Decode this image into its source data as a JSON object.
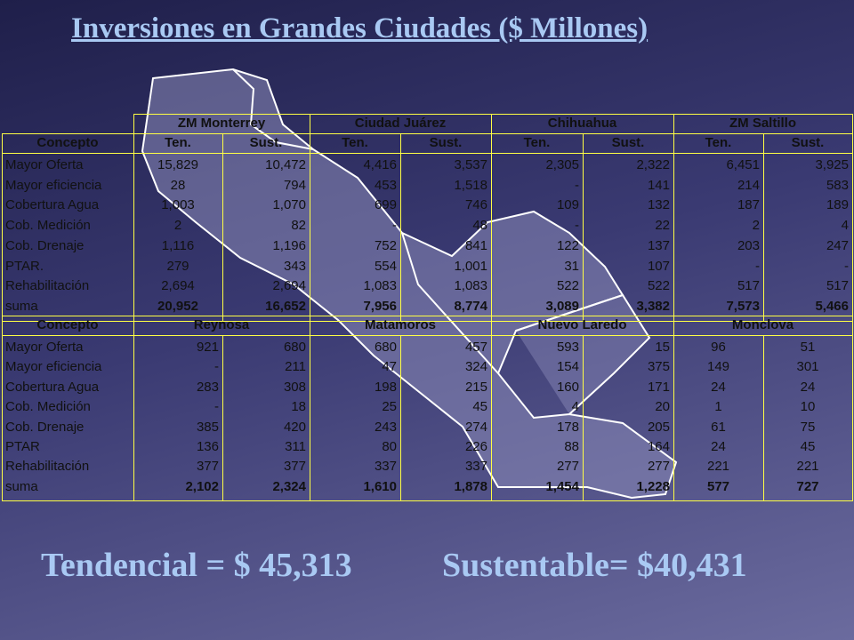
{
  "title": "Inversiones en Grandes Ciudades ($ Millones)",
  "table": {
    "section1": {
      "cities": [
        "ZM Monterrey",
        "Ciudad Juárez",
        "Chihuahua",
        "ZM Saltillo"
      ],
      "columns": [
        "Concepto",
        "Ten.",
        "Sust.",
        "Ten.",
        "Sust.",
        "Ten.",
        "Sust.",
        "Ten.",
        "Sust."
      ],
      "rows": [
        [
          "Mayor Oferta",
          "15,829",
          "10,472",
          "4,416",
          "3,537",
          "2,305",
          "2,322",
          "6,451",
          "3,925"
        ],
        [
          "Mayor eficiencia",
          "28",
          "794",
          "453",
          "1,518",
          "-",
          "141",
          "214",
          "583"
        ],
        [
          "Cobertura Agua",
          "1,003",
          "1,070",
          "699",
          "746",
          "109",
          "132",
          "187",
          "189"
        ],
        [
          "Cob. Medición",
          "2",
          "82",
          "-",
          "48",
          "-",
          "22",
          "2",
          "4"
        ],
        [
          "Cob. Drenaje",
          "1,116",
          "1,196",
          "752",
          "841",
          "122",
          "137",
          "203",
          "247"
        ],
        [
          "PTAR.",
          "279",
          "343",
          "554",
          "1,001",
          "31",
          "107",
          "-",
          "-"
        ],
        [
          "Rehabilitación",
          "2,694",
          "2,694",
          "1,083",
          "1,083",
          "522",
          "522",
          "517",
          "517"
        ],
        [
          "suma",
          "20,952",
          "16,652",
          "7,956",
          "8,774",
          "3,089",
          "3,382",
          "7,573",
          "5,466"
        ]
      ]
    },
    "section2": {
      "concept_header": "Concepto",
      "cities": [
        "Reynosa",
        "Matamoros",
        "Nuevo Laredo",
        "Monclova"
      ],
      "rows": [
        [
          "Mayor Oferta",
          "921",
          "680",
          "680",
          "457",
          "593",
          "15",
          "96",
          "51"
        ],
        [
          "Mayor eficiencia",
          "-",
          "211",
          "47",
          "324",
          "154",
          "375",
          "149",
          "301"
        ],
        [
          "Cobertura Agua",
          "283",
          "308",
          "198",
          "215",
          "160",
          "171",
          "24",
          "24"
        ],
        [
          "Cob. Medición",
          "-",
          "18",
          "25",
          "45",
          "4",
          "20",
          "1",
          "10"
        ],
        [
          "Cob. Drenaje",
          "385",
          "420",
          "243",
          "274",
          "178",
          "205",
          "61",
          "75"
        ],
        [
          "PTAR",
          "136",
          "311",
          "80",
          "226",
          "88",
          "164",
          "24",
          "45"
        ],
        [
          "Rehabilitación",
          "377",
          "377",
          "337",
          "337",
          "277",
          "277",
          "221",
          "221"
        ],
        [
          "suma",
          "2,102",
          "2,324",
          "1,610",
          "1,878",
          "1,454",
          "1,228",
          "577",
          "727"
        ]
      ]
    }
  },
  "footer": {
    "tendencial": "Tendencial = $ 45,313",
    "sustentable": "Sustentable= $40,431"
  }
}
